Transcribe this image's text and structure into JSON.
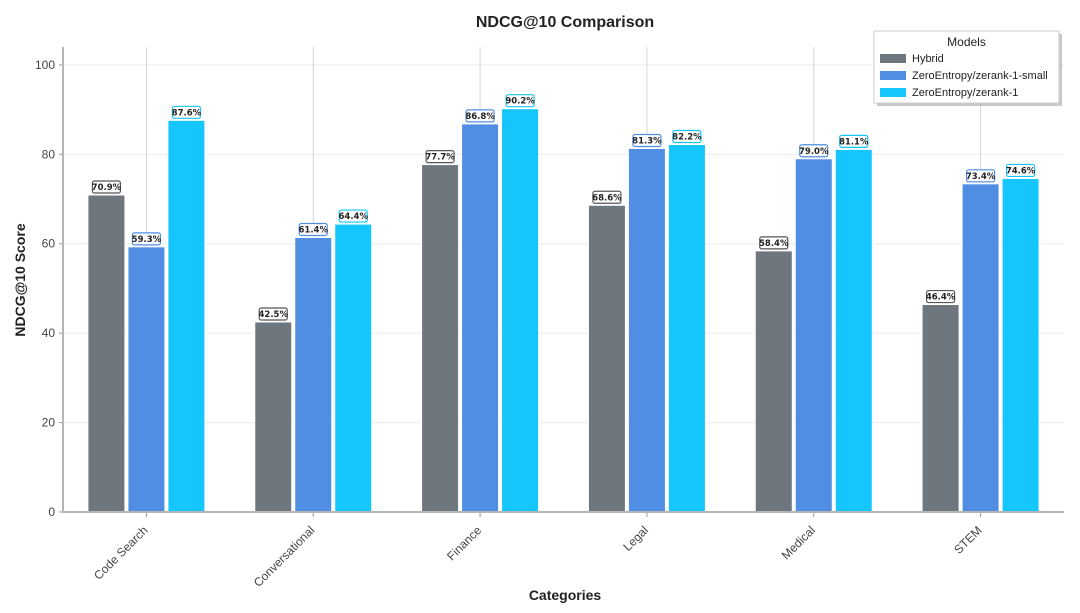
{
  "chart_data": {
    "type": "bar",
    "title": "NDCG@10 Comparison",
    "xlabel": "Categories",
    "ylabel": "NDCG@10 Score",
    "ylim": [
      0,
      104
    ],
    "yticks": [
      0,
      20,
      40,
      60,
      80,
      100
    ],
    "grid": true,
    "categories": [
      "Code Search",
      "Conversational",
      "Finance",
      "Legal",
      "Medical",
      "STEM"
    ],
    "legend": {
      "title": "Models",
      "position": "top-right"
    },
    "series": [
      {
        "name": "Hybrid",
        "color": "#6f777e",
        "values": [
          70.9,
          42.5,
          77.7,
          68.6,
          58.4,
          46.4
        ],
        "labels": [
          "70.9%",
          "42.5%",
          "77.7%",
          "68.6%",
          "58.4%",
          "46.4%"
        ]
      },
      {
        "name": "ZeroEntropy/zerank-1-small",
        "color": "#4f8ee2",
        "values": [
          59.3,
          61.4,
          86.8,
          81.3,
          79.0,
          73.4
        ],
        "labels": [
          "59.3%",
          "61.4%",
          "86.8%",
          "81.3%",
          "79.0%",
          "73.4%"
        ]
      },
      {
        "name": "ZeroEntropy/zerank-1",
        "color": "#14c6fb",
        "values": [
          87.6,
          64.4,
          90.2,
          82.2,
          81.1,
          74.6
        ],
        "labels": [
          "87.6%",
          "64.4%",
          "90.2%",
          "82.2%",
          "81.1%",
          "74.6%"
        ]
      }
    ]
  }
}
